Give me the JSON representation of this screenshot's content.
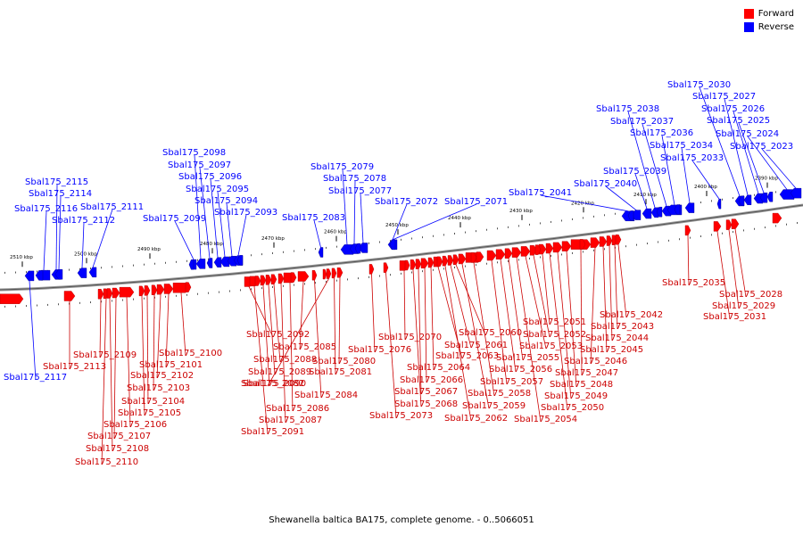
{
  "caption": "Shewanella baltica BA175, complete genome. - 0..5066051",
  "legend": [
    {
      "label": "Forward",
      "color": "#ff0000"
    },
    {
      "label": "Reverse",
      "color": "#0000ff"
    }
  ],
  "ticks": [
    {
      "label": "2510 kbp"
    },
    {
      "label": "2500 kbp"
    },
    {
      "label": "2490 kbp"
    },
    {
      "label": "2480 kbp"
    },
    {
      "label": "2470 kbp"
    },
    {
      "label": "2460 kbp"
    },
    {
      "label": "2450 kbp"
    },
    {
      "label": "2440 kbp"
    },
    {
      "label": "2430 kbp"
    },
    {
      "label": "2420 kbp"
    },
    {
      "label": "2410 kbp"
    },
    {
      "label": "2400 kbp"
    },
    {
      "label": "2390 kbp"
    }
  ],
  "reverse_genes": [
    "Sbal175_2117",
    "Sbal175_2116",
    "Sbal175_2115",
    "Sbal175_2114",
    "Sbal175_2112",
    "Sbal175_2111",
    "Sbal175_2099",
    "Sbal175_2098",
    "Sbal175_2097",
    "Sbal175_2096",
    "Sbal175_2095",
    "Sbal175_2094",
    "Sbal175_2093",
    "Sbal175_2083",
    "Sbal175_2079",
    "Sbal175_2078",
    "Sbal175_2077",
    "Sbal175_2072",
    "Sbal175_2071",
    "Sbal175_2041",
    "Sbal175_2040",
    "Sbal175_2039",
    "Sbal175_2038",
    "Sbal175_2037",
    "Sbal175_2036",
    "Sbal175_2034",
    "Sbal175_2033",
    "Sbal175_2030",
    "Sbal175_2027",
    "Sbal175_2026",
    "Sbal175_2025",
    "Sbal175_2024",
    "Sbal175_2023"
  ],
  "forward_genes": [
    "Sbal175_2113",
    "Sbal175_2109",
    "Sbal175_2110",
    "Sbal175_2108",
    "Sbal175_2107",
    "Sbal175_2106",
    "Sbal175_2105",
    "Sbal175_2104",
    "Sbal175_2103",
    "Sbal175_2102",
    "Sbal175_2101",
    "Sbal175_2100",
    "Sbal175_2092",
    "Sbal175_2091",
    "Sbal175_2090",
    "Sbal175_2089",
    "Sbal175_2088",
    "Sbal175_2087",
    "Sbal175_2086",
    "Sbal175_2085",
    "Sbal175_2084",
    "Sbal175_2082",
    "Sbal175_2081",
    "Sbal175_2080",
    "Sbal175_2076",
    "Sbal175_2073",
    "Sbal175_2070",
    "Sbal175_2068",
    "Sbal175_2067",
    "Sbal175_2066",
    "Sbal175_2064",
    "Sbal175_2063",
    "Sbal175_2062",
    "Sbal175_2061",
    "Sbal175_2060",
    "Sbal175_2059",
    "Sbal175_2058",
    "Sbal175_2057",
    "Sbal175_2056",
    "Sbal175_2055",
    "Sbal175_2054",
    "Sbal175_2053",
    "Sbal175_2052",
    "Sbal175_2051",
    "Sbal175_2050",
    "Sbal175_2049",
    "Sbal175_2048",
    "Sbal175_2047",
    "Sbal175_2046",
    "Sbal175_2045",
    "Sbal175_2044",
    "Sbal175_2043",
    "Sbal175_2042",
    "Sbal175_2035",
    "Sbal175_2031",
    "Sbal175_2029",
    "Sbal175_2028"
  ]
}
